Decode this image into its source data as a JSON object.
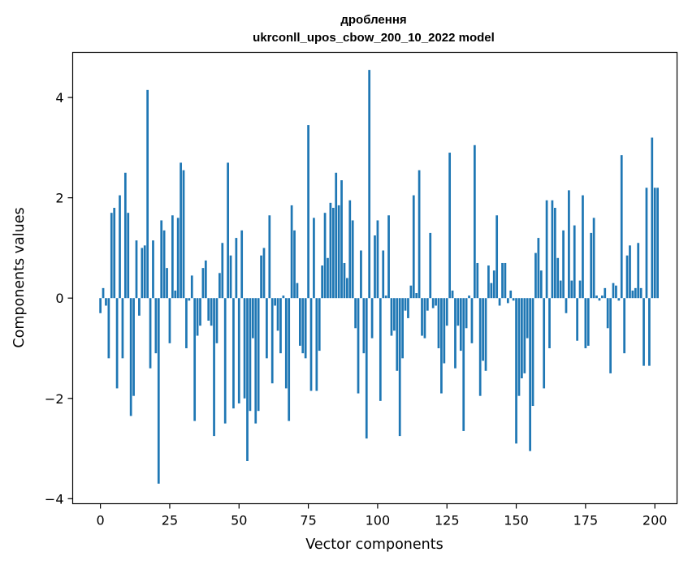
{
  "chart_data": {
    "type": "bar",
    "title": "дроблення",
    "subtitle": "ukrconll_upos_cbow_200_10_2022 model",
    "xlabel": "Vector components",
    "ylabel": "Components values",
    "xlim": [
      -10,
      208
    ],
    "ylim": [
      -4.1,
      4.9
    ],
    "xticks": [
      0,
      25,
      50,
      75,
      100,
      125,
      150,
      175,
      200
    ],
    "yticks": [
      -4,
      -2,
      0,
      2,
      4
    ],
    "ytick_labels": [
      "−4",
      "−2",
      "0",
      "2",
      "4"
    ],
    "grid": false,
    "bar_color": "#1f77b4",
    "values": [
      -0.3,
      0.2,
      -0.15,
      -1.2,
      1.7,
      1.8,
      -1.8,
      2.05,
      -1.2,
      2.5,
      1.7,
      -2.35,
      -1.95,
      1.15,
      -0.35,
      1.0,
      1.05,
      4.15,
      -1.4,
      1.15,
      -1.1,
      -3.7,
      1.55,
      1.35,
      0.6,
      -0.9,
      1.65,
      0.15,
      1.6,
      2.7,
      2.55,
      -1.0,
      -0.05,
      0.45,
      -2.45,
      -0.75,
      -0.55,
      0.6,
      0.75,
      -0.45,
      -0.55,
      -2.75,
      -0.9,
      0.5,
      1.1,
      -2.5,
      2.7,
      0.85,
      -2.2,
      1.2,
      -2.1,
      1.35,
      -2.0,
      -3.25,
      -2.25,
      -0.8,
      -2.5,
      -2.25,
      0.85,
      1.0,
      -1.2,
      1.65,
      -1.7,
      -0.15,
      -0.65,
      -1.1,
      0.05,
      -1.8,
      -2.45,
      1.85,
      1.35,
      0.3,
      -0.95,
      -1.1,
      -1.2,
      3.45,
      -1.85,
      1.6,
      -1.85,
      -1.05,
      0.65,
      1.7,
      0.8,
      1.9,
      1.8,
      2.5,
      1.85,
      2.35,
      0.7,
      0.4,
      1.95,
      1.55,
      -0.6,
      -1.9,
      0.95,
      -1.1,
      -2.8,
      4.55,
      -0.8,
      1.25,
      1.55,
      -2.05,
      0.95,
      0.05,
      1.65,
      -0.75,
      -0.65,
      -1.45,
      -2.75,
      -1.2,
      -0.25,
      -0.4,
      0.25,
      2.05,
      0.1,
      2.55,
      -0.75,
      -0.8,
      -0.25,
      1.3,
      -0.2,
      -0.15,
      -1.0,
      -1.9,
      -1.3,
      -0.55,
      2.9,
      0.15,
      -1.4,
      -0.55,
      -1.05,
      -2.65,
      -0.6,
      0.05,
      -0.9,
      3.05,
      0.7,
      -1.95,
      -1.25,
      -1.45,
      0.65,
      0.3,
      0.55,
      1.65,
      -0.15,
      0.7,
      0.7,
      -0.1,
      0.15,
      -0.05,
      -2.9,
      -1.95,
      -1.6,
      -1.5,
      -0.8,
      -3.05,
      -2.15,
      0.9,
      1.2,
      0.55,
      -1.8,
      1.95,
      -1.0,
      1.95,
      1.8,
      0.8,
      0.35,
      1.35,
      -0.3,
      2.15,
      0.35,
      1.45,
      -0.85,
      0.35,
      2.05,
      -1.0,
      -0.95,
      1.3,
      1.6,
      0.05,
      -0.05,
      0.05,
      0.2,
      -0.6,
      -1.5,
      0.3,
      0.25,
      -0.05,
      2.85,
      -1.1,
      0.85,
      1.05,
      0.15,
      0.2,
      1.1,
      0.2,
      -1.35,
      2.2,
      -1.35,
      3.2,
      2.2,
      2.2
    ]
  }
}
